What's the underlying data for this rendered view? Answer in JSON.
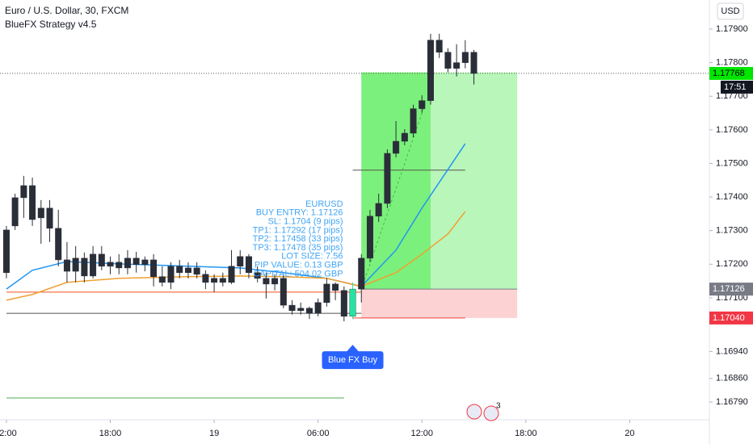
{
  "chart_data": {
    "type": "candlestick",
    "title": "Euro / U.S. Dollar, 30, FXCM",
    "subtitle": "BlueFX Strategy v4.5",
    "currency": "USD",
    "countdown": "17:51",
    "badge": "3",
    "up_color": "#2a2e39",
    "down_color": "#2a2e39",
    "xlim": [
      -0.37,
      40.6
    ],
    "xticks": [
      {
        "value": 0,
        "label": "2:00"
      },
      {
        "value": 6,
        "label": "18:00"
      },
      {
        "value": 12,
        "label": "19"
      },
      {
        "value": 18,
        "label": "06:00"
      },
      {
        "value": 24,
        "label": "12:00"
      },
      {
        "value": 30,
        "label": "18:00"
      },
      {
        "value": 36,
        "label": "20"
      }
    ],
    "ylim": [
      1.16737,
      1.179865
    ],
    "yticks": [
      {
        "value": 1.179,
        "label": "1.17900"
      },
      {
        "value": 1.178,
        "label": "1.17800"
      },
      {
        "value": 1.177,
        "label": "1.17700"
      },
      {
        "value": 1.176,
        "label": "1.17600"
      },
      {
        "value": 1.175,
        "label": "1.17500"
      },
      {
        "value": 1.174,
        "label": "1.17400"
      },
      {
        "value": 1.173,
        "label": "1.17300"
      },
      {
        "value": 1.172,
        "label": "1.17200"
      },
      {
        "value": 1.171,
        "label": "1.17100"
      },
      {
        "value": 1.1694,
        "label": "1.16940"
      },
      {
        "value": 1.1686,
        "label": "1.16860"
      },
      {
        "value": 1.1679,
        "label": "1.16790"
      }
    ],
    "grid": false,
    "x": [
      0,
      0.5,
      1,
      1.5,
      2,
      2.5,
      3,
      3.5,
      4,
      4.5,
      5,
      5.5,
      6,
      6.5,
      7,
      7.5,
      8,
      8.5,
      9,
      9.5,
      10,
      10.5,
      11,
      11.5,
      12,
      12.5,
      13,
      13.5,
      14,
      14.5,
      15,
      15.5,
      16,
      16.5,
      17,
      17.5,
      18,
      18.5,
      19,
      19.5,
      20,
      20.5,
      21,
      21.5,
      22,
      22.5,
      23,
      23.5,
      24,
      24.5,
      25,
      25.5,
      26,
      26.5,
      27
    ],
    "open": [
      1.17302,
      1.17314,
      1.17398,
      1.17434,
      1.17338,
      1.17367,
      1.17307,
      1.17213,
      1.17179,
      1.17218,
      1.17165,
      1.1723,
      1.17194,
      1.17206,
      1.17189,
      1.17218,
      1.17199,
      1.17213,
      1.17163,
      1.17146,
      1.17194,
      1.17175,
      1.17189,
      1.1717,
      1.17146,
      1.17158,
      1.17146,
      1.17194,
      1.17223,
      1.17175,
      1.17158,
      1.17141,
      1.17158,
      1.17078,
      1.17062,
      1.17069,
      1.17054,
      1.17086,
      1.17141,
      1.17122,
      1.17045,
      1.17126,
      1.17218,
      1.17343,
      1.17381,
      1.1753,
      1.17566,
      1.1759,
      1.17663,
      1.17687,
      1.17867,
      1.17831,
      1.17783,
      1.178,
      1.17831
    ],
    "high": [
      1.17314,
      1.1741,
      1.17463,
      1.17458,
      1.17391,
      1.17391,
      1.17362,
      1.17266,
      1.17254,
      1.17235,
      1.17254,
      1.17254,
      1.17223,
      1.1723,
      1.17242,
      1.17237,
      1.17223,
      1.1723,
      1.17194,
      1.17206,
      1.17213,
      1.17206,
      1.17206,
      1.17182,
      1.1717,
      1.17175,
      1.17242,
      1.17242,
      1.1723,
      1.17194,
      1.17175,
      1.1717,
      1.1717,
      1.17093,
      1.17086,
      1.17074,
      1.17098,
      1.17158,
      1.17146,
      1.17134,
      1.17146,
      1.1723,
      1.17362,
      1.1741,
      1.17542,
      1.17626,
      1.17602,
      1.17675,
      1.17703,
      1.17886,
      1.17886,
      1.17843,
      1.17855,
      1.17867,
      1.17838
    ],
    "low": [
      1.17158,
      1.17302,
      1.17338,
      1.17314,
      1.17261,
      1.17266,
      1.17194,
      1.17146,
      1.17146,
      1.17146,
      1.17158,
      1.17182,
      1.1717,
      1.1717,
      1.1717,
      1.17175,
      1.17179,
      1.17134,
      1.17134,
      1.17126,
      1.17158,
      1.17158,
      1.17158,
      1.17126,
      1.17117,
      1.17134,
      1.17141,
      1.1717,
      1.17158,
      1.17146,
      1.17098,
      1.17122,
      1.17069,
      1.1705,
      1.1705,
      1.17037,
      1.17045,
      1.17074,
      1.17093,
      1.1703,
      1.17037,
      1.17086,
      1.17206,
      1.17326,
      1.17367,
      1.17518,
      1.17554,
      1.17578,
      1.17651,
      1.17675,
      1.17814,
      1.17771,
      1.17759,
      1.17783,
      1.17735
    ],
    "close": [
      1.17175,
      1.17398,
      1.17434,
      1.17333,
      1.17367,
      1.17307,
      1.17213,
      1.17179,
      1.17218,
      1.17165,
      1.1723,
      1.17194,
      1.17206,
      1.17189,
      1.17218,
      1.17199,
      1.17213,
      1.17163,
      1.17146,
      1.17194,
      1.17175,
      1.17189,
      1.1717,
      1.17146,
      1.17158,
      1.17146,
      1.17194,
      1.17223,
      1.17175,
      1.17158,
      1.17141,
      1.17158,
      1.17078,
      1.17062,
      1.17069,
      1.17054,
      1.17086,
      1.17141,
      1.17122,
      1.17045,
      1.17126,
      1.17218,
      1.17343,
      1.17381,
      1.1753,
      1.17566,
      1.1759,
      1.17663,
      1.17687,
      1.17867,
      1.17831,
      1.17783,
      1.178,
      1.17831,
      1.17768
    ],
    "series": [
      {
        "color": "#2196f3",
        "x": [
          0,
          1.5,
          3.5,
          6.5,
          10.5,
          13.5,
          16,
          18.5,
          20.5,
          22.5,
          24,
          25.5,
          26.5
        ],
        "values": [
          1.17126,
          1.17182,
          1.17208,
          1.17201,
          1.17194,
          1.17189,
          1.17175,
          1.17158,
          1.17134,
          1.17242,
          1.17367,
          1.17482,
          1.17559
        ]
      },
      {
        "color": "#f0a030",
        "x": [
          0,
          1.5,
          3.5,
          6.5,
          10.5,
          13.5,
          16,
          18.5,
          20.5,
          22.5,
          24,
          25.5,
          26.5
        ],
        "values": [
          1.17093,
          1.1711,
          1.17146,
          1.17158,
          1.17163,
          1.17165,
          1.17163,
          1.17158,
          1.17134,
          1.17175,
          1.1723,
          1.1729,
          1.17357
        ]
      }
    ],
    "position": {
      "start": 20.5,
      "hit": 24.5,
      "end": 29.5,
      "entry": 1.17126,
      "stop": 1.1704,
      "target": 1.17771
    },
    "levels": [
      {
        "value": 1.17117,
        "color": "#f4511e",
        "x": [
          0,
          20.5
        ]
      },
      {
        "value": 1.17054,
        "color": "#555555",
        "x": [
          0,
          20.5
        ]
      },
      {
        "value": 1.16802,
        "color": "#4caf50",
        "x": [
          0,
          19.5
        ]
      },
      {
        "value": 1.1748,
        "color": "#555555",
        "x": [
          20,
          26.5
        ]
      },
      {
        "value": 1.1704,
        "color": "#f44336",
        "x": [
          20,
          26.5
        ]
      }
    ],
    "trend": {
      "color": "#4caf50",
      "x": [
        20.5,
        24.25
      ],
      "values": [
        1.17126,
        1.17687
      ]
    },
    "info": [
      "EURUSD",
      "BUY ENTRY: 1.17126",
      "SL: 1.1704 (9 pips)",
      "TP1: 1.17292 (17 pips)",
      "TP2: 1.17458 (33 pips)",
      "TP3: 1.17478 (35 pips)",
      "LOT SIZE: 7.56",
      "PIP VALUE: 0.13 GBP",
      "CAPITAL: 504.02 GBP"
    ],
    "signal": {
      "label": "Blue FX Buy",
      "x": 20,
      "color": "#2962ff"
    },
    "price_labels": [
      {
        "value": 1.17768,
        "color": "#00e600"
      },
      {
        "value": 1.17126,
        "color": "#787b86"
      },
      {
        "value": 1.1704,
        "label": "1.17040",
        "color": "#f23645"
      }
    ]
  }
}
